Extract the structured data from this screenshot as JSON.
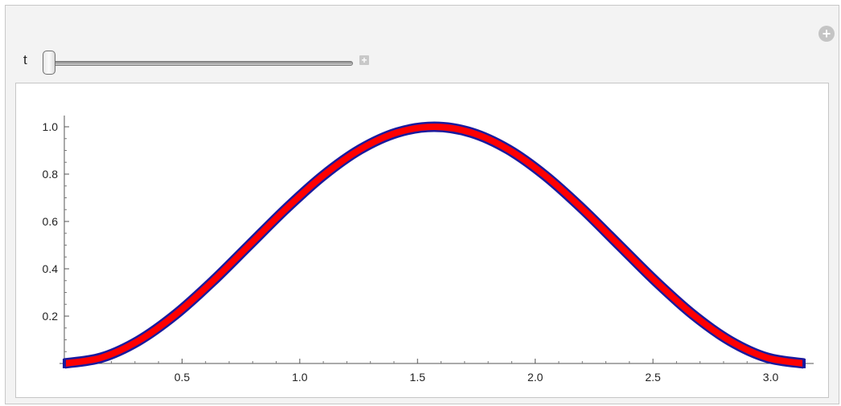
{
  "controls": {
    "parameter_label": "t",
    "slider_value": 0,
    "expand_symbol": "+",
    "options_symbol": "+"
  },
  "icons": {
    "slider_expand": "plus-square-icon",
    "options": "plus-circle-icon"
  },
  "colors": {
    "panel_background": "#f3f3f3",
    "curve_outline": "#1a1a9e",
    "curve_fill": "#ff0000"
  },
  "chart_data": {
    "type": "line",
    "title": "",
    "xlabel": "",
    "ylabel": "",
    "xlim": [
      0,
      3.1416
    ],
    "ylim": [
      0,
      1.0
    ],
    "x_ticks": [
      0.5,
      1.0,
      1.5,
      2.0,
      2.5,
      3.0
    ],
    "x_tick_labels": [
      "0.5",
      "1.0",
      "1.5",
      "2.0",
      "2.5",
      "3.0"
    ],
    "y_ticks": [
      0.2,
      0.4,
      0.6,
      0.8,
      1.0
    ],
    "y_tick_labels": [
      "0.2",
      "0.4",
      "0.6",
      "0.8",
      "1.0"
    ],
    "grid": false,
    "series": [
      {
        "x": [
          0,
          0.1571,
          0.3142,
          0.4712,
          0.6283,
          0.7854,
          0.9425,
          1.0996,
          1.2566,
          1.4137,
          1.5708,
          1.7279,
          1.885,
          2.042,
          2.1991,
          2.3562,
          2.5133,
          2.6704,
          2.8274,
          2.9845,
          3.1416
        ],
        "y": [
          0,
          0.0245,
          0.0955,
          0.2061,
          0.3455,
          0.5,
          0.6545,
          0.7939,
          0.9045,
          0.9755,
          1.0,
          0.9755,
          0.9045,
          0.7939,
          0.6545,
          0.5,
          0.3455,
          0.2061,
          0.0955,
          0.0245,
          0
        ]
      }
    ]
  }
}
